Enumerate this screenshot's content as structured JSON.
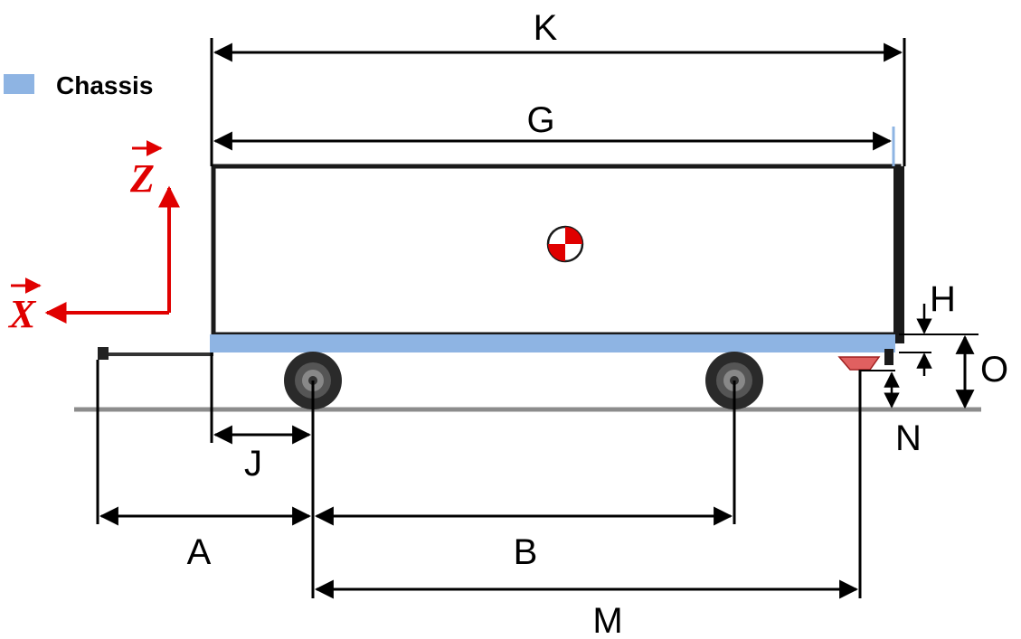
{
  "legend": {
    "label": "Chassis",
    "color": "#8eb4e3"
  },
  "axes": {
    "x_label": "X",
    "z_label": "Z",
    "color": "#e00000"
  },
  "dimensions": {
    "K": "K",
    "G": "G",
    "H": "H",
    "O": "O",
    "N": "N",
    "J": "J",
    "A": "A",
    "B": "B",
    "M": "M"
  },
  "colors": {
    "chassis": "#8eb4e3",
    "body_outline": "#1a1a1a",
    "ground": "#8c8c8c",
    "hitch_pad": "#e06060",
    "cog_red": "#e00000"
  },
  "icons": [
    "center-of-gravity-icon",
    "wheel-icon",
    "hitch-icon"
  ]
}
